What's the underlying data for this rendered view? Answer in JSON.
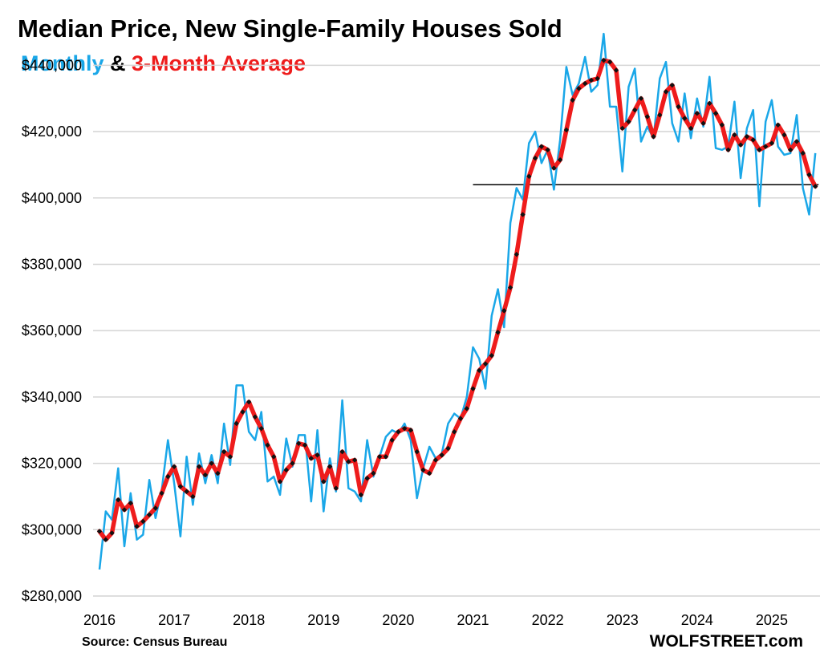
{
  "title": "Median Price, New Single-Family Houses Sold",
  "subtitle": {
    "monthly": "Monthly",
    "amp": " & ",
    "avg": "3-Month Average"
  },
  "source": "Source: Census Bureau",
  "brand": "WOLFSTREET.com",
  "colors": {
    "monthly": "#1aa7e8",
    "average": "#ee1c1c",
    "marker": "#111111",
    "grid": "#d4d4d4",
    "refline": "#000000"
  },
  "chart_data": {
    "type": "line",
    "title": "Median Price, New Single-Family Houses Sold",
    "x_start": "2016-01",
    "x_end": "2025-08",
    "x_tick_labels": [
      "2016",
      "2017",
      "2018",
      "2019",
      "2020",
      "2021",
      "2022",
      "2023",
      "2024",
      "2025"
    ],
    "ylim": [
      280000,
      450000
    ],
    "y_ticks": [
      280000,
      300000,
      320000,
      340000,
      360000,
      380000,
      400000,
      420000,
      440000
    ],
    "y_tick_labels": [
      "$280,000",
      "$300,000",
      "$320,000",
      "$340,000",
      "$360,000",
      "$380,000",
      "$400,000",
      "$420,000",
      "$440,000"
    ],
    "grid": true,
    "reference_line": {
      "y": 404000,
      "from": "2021-01",
      "to": "2025-08"
    },
    "series": [
      {
        "name": "Monthly",
        "values": [
          288000,
          305500,
          303000,
          318500,
          295000,
          311000,
          297000,
          298500,
          315000,
          303500,
          312000,
          327000,
          314000,
          298000,
          322000,
          307500,
          323000,
          314000,
          322500,
          314000,
          332000,
          319500,
          343500,
          343500,
          329500,
          327000,
          335500,
          314500,
          316000,
          310500,
          327500,
          319000,
          328500,
          328500,
          308500,
          330000,
          305500,
          321500,
          311500,
          339000,
          312500,
          311500,
          308500,
          327000,
          316000,
          322000,
          328000,
          330000,
          329000,
          332000,
          327000,
          309500,
          318500,
          325000,
          321500,
          323000,
          332000,
          335000,
          333500,
          340000,
          355000,
          351500,
          342500,
          364500,
          372500,
          361000,
          392500,
          403000,
          399500,
          416500,
          420000,
          410500,
          414500,
          402500,
          417500,
          439500,
          431000,
          434500,
          442500,
          432000,
          434000,
          449500,
          427500,
          427500,
          408000,
          433500,
          439000,
          417000,
          421500,
          418000,
          436000,
          441000,
          422500,
          417000,
          431500,
          418000,
          430000,
          421500,
          436500,
          415000,
          414500,
          415500,
          429000,
          406000,
          421000,
          426500,
          397500,
          423000,
          429500,
          415500,
          413000,
          413500,
          425000,
          403000,
          395000,
          413500
        ]
      },
      {
        "name": "3-Month Average",
        "values": [
          299500,
          297000,
          299000,
          309000,
          306000,
          308000,
          301000,
          302500,
          304500,
          306500,
          311000,
          316000,
          319000,
          313000,
          311500,
          310000,
          319000,
          316500,
          320000,
          317000,
          323500,
          322000,
          332000,
          335500,
          338500,
          334000,
          330500,
          325500,
          322000,
          314500,
          318000,
          320000,
          326000,
          325500,
          321500,
          322500,
          314500,
          319000,
          312500,
          323500,
          320500,
          321000,
          310500,
          315500,
          317000,
          322000,
          322000,
          327000,
          329500,
          330500,
          330000,
          323500,
          318000,
          317000,
          321000,
          322500,
          324500,
          329500,
          333500,
          336500,
          342500,
          348000,
          350000,
          352500,
          359500,
          366000,
          373000,
          383000,
          395000,
          406500,
          412000,
          415500,
          414500,
          409000,
          411500,
          420500,
          429500,
          433000,
          434500,
          435500,
          436000,
          441500,
          441000,
          438500,
          421000,
          423000,
          426500,
          430000,
          424500,
          418500,
          425000,
          432000,
          434000,
          427500,
          424000,
          421000,
          425500,
          422500,
          428500,
          425500,
          422000,
          414500,
          419000,
          416000,
          418500,
          417500,
          414500,
          415500,
          416500,
          422000,
          419000,
          414500,
          417000,
          413500,
          407000,
          403500
        ]
      }
    ]
  }
}
